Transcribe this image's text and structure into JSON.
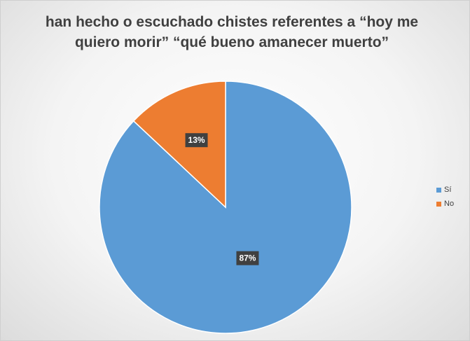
{
  "chart_data": {
    "type": "pie",
    "title": "han hecho o escuchado chistes referentes a “hoy me quiero morir” “qué bueno amanecer muerto”",
    "categories": [
      "Sí",
      "No"
    ],
    "values": [
      87,
      13
    ],
    "labels": [
      "87%",
      "13%"
    ],
    "colors": [
      "#5B9BD5",
      "#ED7D31"
    ],
    "legend_position": "right",
    "start_angle_deg": 0,
    "direction": "clockwise"
  }
}
